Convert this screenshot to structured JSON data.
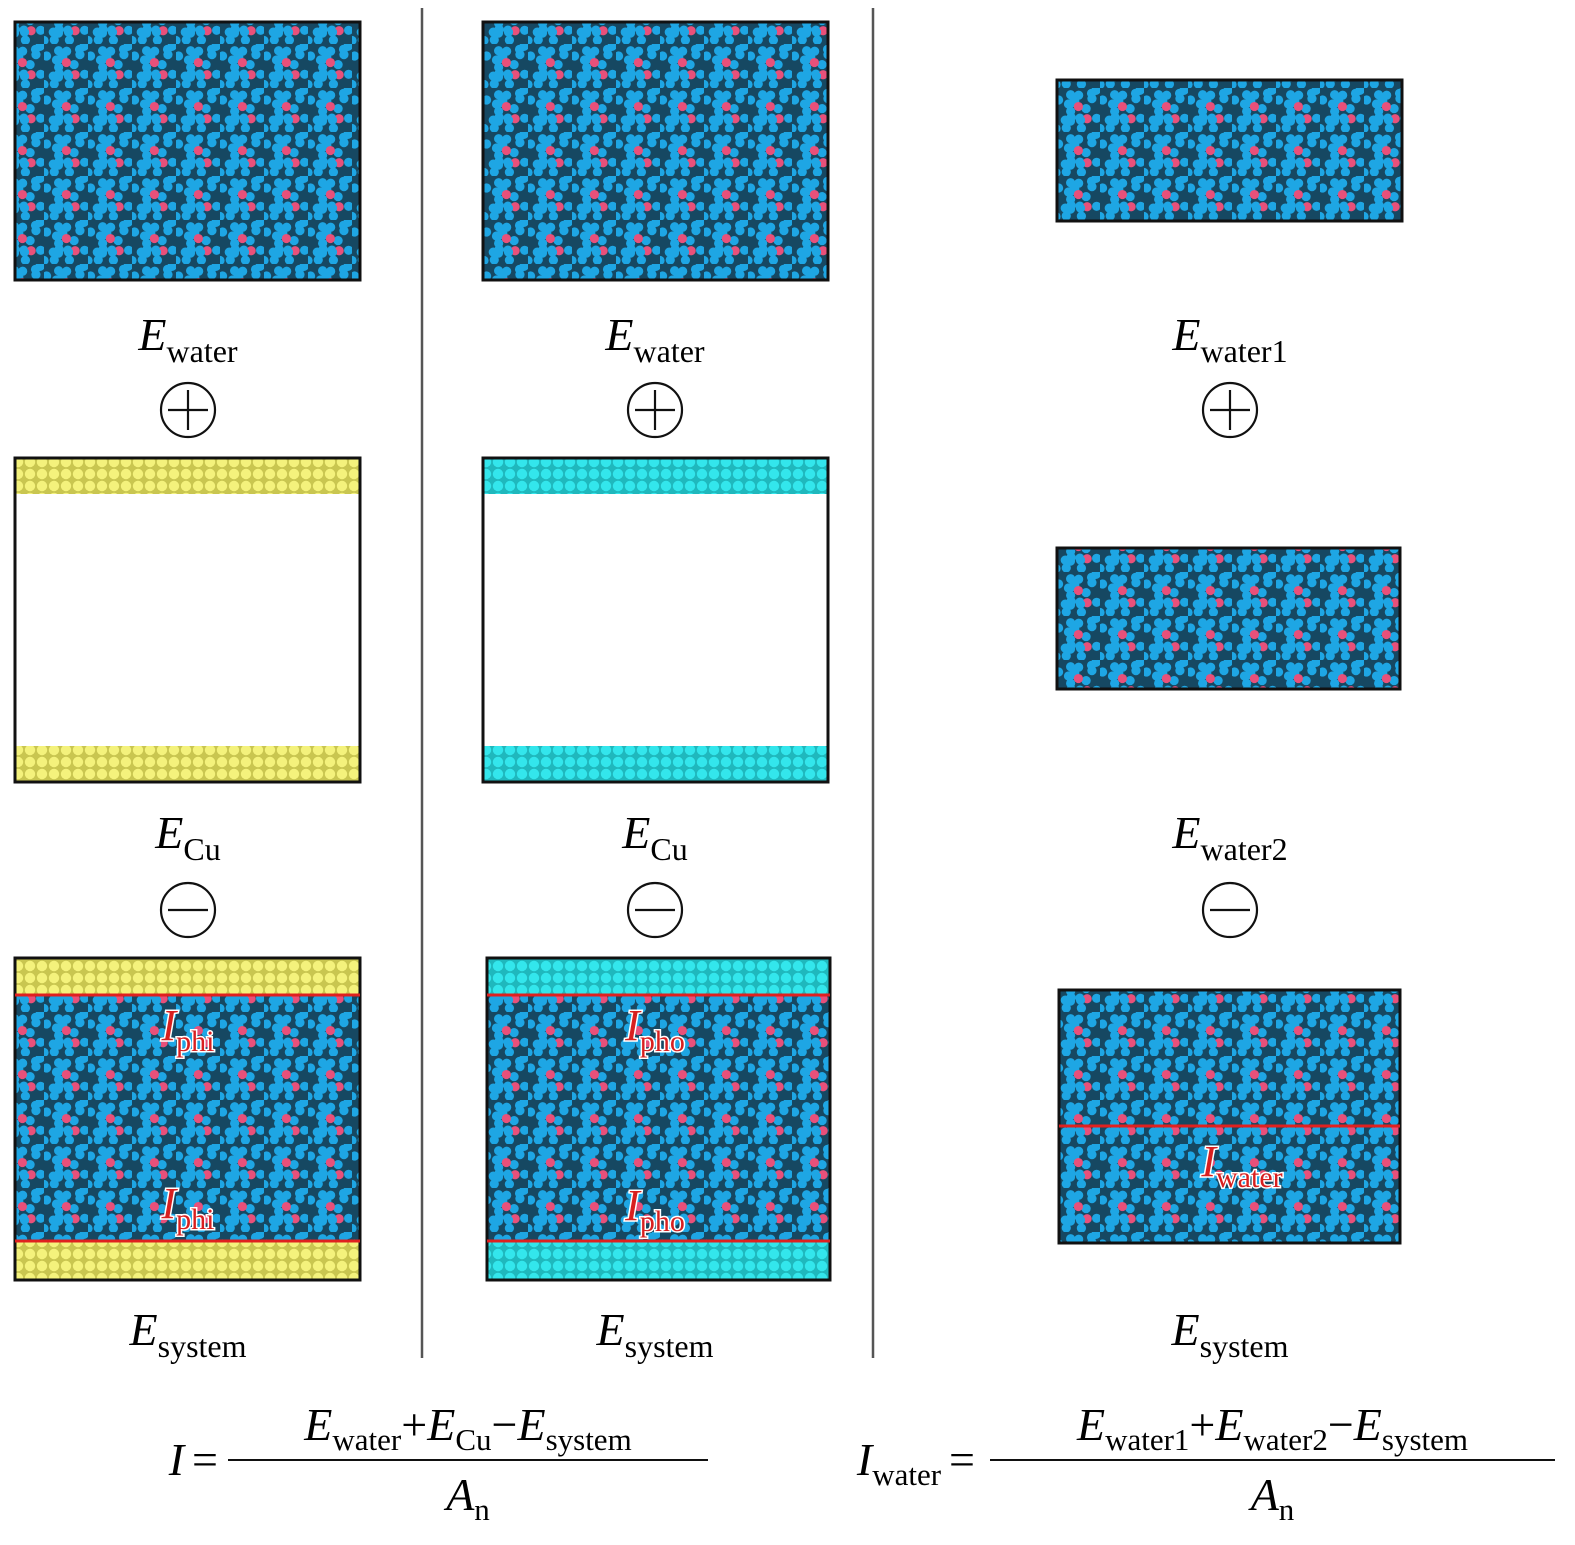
{
  "columns": [
    {
      "stages": [
        {
          "label": {
            "symbol": "E",
            "subscript": "water"
          }
        },
        {
          "label": {
            "symbol": "E",
            "subscript": "Cu"
          }
        },
        {
          "label": {
            "symbol": "E",
            "subscript": "system"
          },
          "interfaces": [
            {
              "symbol": "I",
              "subscript": "phi"
            },
            {
              "symbol": "I",
              "subscript": "phi"
            }
          ]
        }
      ]
    },
    {
      "stages": [
        {
          "label": {
            "symbol": "E",
            "subscript": "water"
          }
        },
        {
          "label": {
            "symbol": "E",
            "subscript": "Cu"
          }
        },
        {
          "label": {
            "symbol": "E",
            "subscript": "system"
          },
          "interfaces": [
            {
              "symbol": "I",
              "subscript": "pho"
            },
            {
              "symbol": "I",
              "subscript": "pho"
            }
          ]
        }
      ]
    },
    {
      "stages": [
        {
          "label": {
            "symbol": "E",
            "subscript": "water1"
          }
        },
        {
          "label": {
            "symbol": "E",
            "subscript": "water2"
          }
        },
        {
          "label": {
            "symbol": "E",
            "subscript": "system"
          },
          "interfaces": [
            {
              "symbol": "I",
              "subscript": "water"
            }
          ]
        }
      ]
    }
  ],
  "formulas": [
    {
      "lhs": {
        "symbol": "I"
      },
      "equals": "=",
      "numerator": [
        {
          "symbol": "E",
          "subscript": "water"
        },
        {
          "operator": "+"
        },
        {
          "symbol": "E",
          "subscript": "Cu"
        },
        {
          "operator": "−"
        },
        {
          "symbol": "E",
          "subscript": "system"
        }
      ],
      "denominator": {
        "symbol": "A",
        "subscript": "n"
      }
    },
    {
      "lhs": {
        "symbol": "I",
        "subscript": "water"
      },
      "equals": "=",
      "numerator": [
        {
          "symbol": "E",
          "subscript": "water1"
        },
        {
          "operator": "+"
        },
        {
          "symbol": "E",
          "subscript": "water2"
        },
        {
          "operator": "−"
        },
        {
          "symbol": "E",
          "subscript": "system"
        }
      ],
      "denominator": {
        "symbol": "A",
        "subscript": "n"
      }
    }
  ]
}
